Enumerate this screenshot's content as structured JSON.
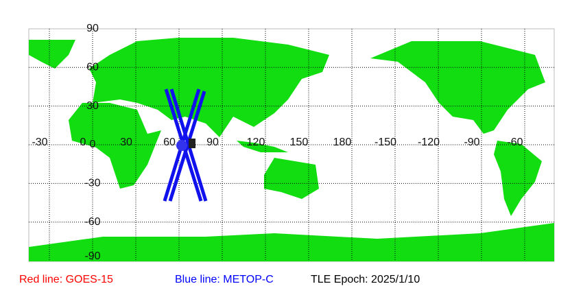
{
  "map": {
    "lat_labels": [
      90,
      60,
      30,
      0,
      -30,
      -60,
      -90
    ],
    "lon_labels": [
      -30,
      0,
      30,
      60,
      90,
      120,
      150,
      180,
      -150,
      -120,
      -90,
      -60
    ]
  },
  "legend": {
    "red": "Red line: GOES-15",
    "blue": "Blue line: METOP-C",
    "epoch": "TLE Epoch: 2025/1/10"
  }
}
